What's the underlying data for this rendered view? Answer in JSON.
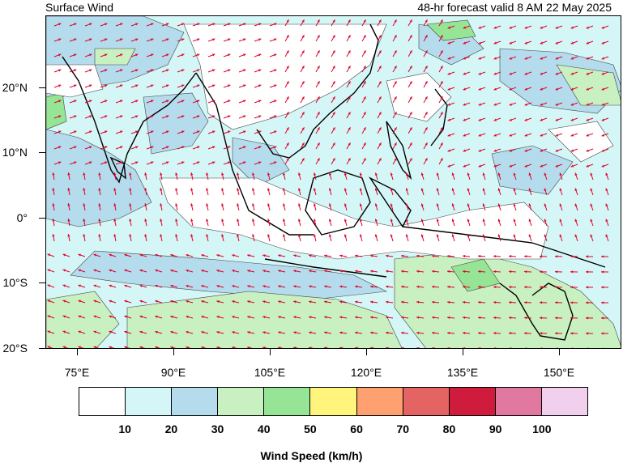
{
  "title_left": "Surface Wind",
  "title_right": "48-hr forecast valid 8 AM 22 May 2025",
  "lat_labels": [
    "20°N",
    "10°N",
    "0°",
    "10°S",
    "20°S"
  ],
  "lon_labels": [
    "75°E",
    "90°E",
    "105°E",
    "120°E",
    "135°E",
    "150°E"
  ],
  "colorbar": {
    "title": "Wind Speed (km/h)",
    "tick_labels": [
      "10",
      "20",
      "30",
      "40",
      "50",
      "60",
      "70",
      "80",
      "90",
      "100"
    ],
    "colors": [
      "#ffffff",
      "#d4f6f6",
      "#b4dcec",
      "#c8f0c0",
      "#96e496",
      "#fff47c",
      "#ffa070",
      "#e46464",
      "#d01c3c",
      "#e078a0",
      "#f0d0ec"
    ]
  },
  "map": {
    "arrow_color": "#e0002a",
    "coastline_color": "#000000"
  }
}
